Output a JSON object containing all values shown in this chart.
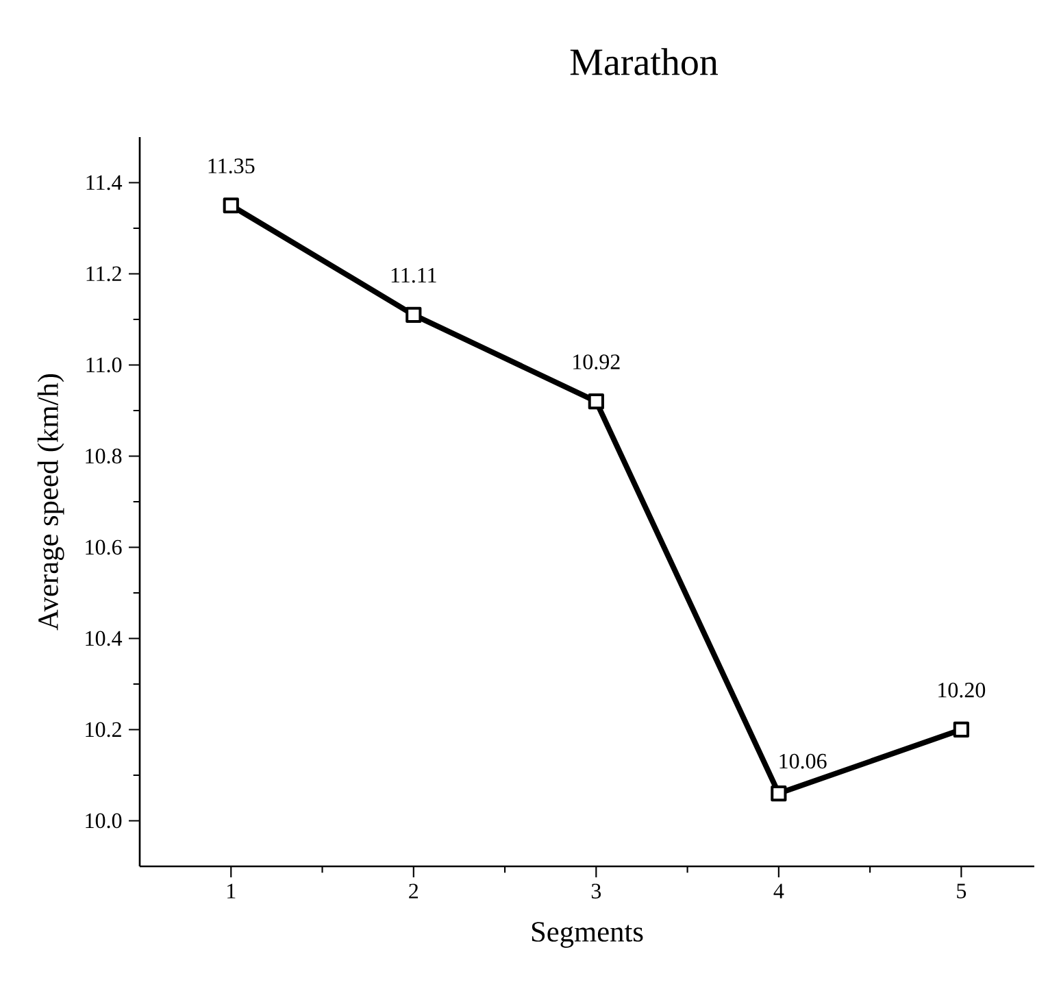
{
  "chart_data": {
    "type": "line",
    "title": "Marathon",
    "xlabel": "Segments",
    "ylabel": "Average speed (km/h)",
    "x": [
      1,
      2,
      3,
      4,
      5
    ],
    "series": [
      {
        "color": "#000000",
        "values": [
          11.35,
          11.11,
          10.92,
          10.06,
          10.2
        ],
        "value_labels": [
          "11.35",
          "11.11",
          "10.92",
          "10.06",
          "10.20"
        ]
      }
    ],
    "xlim": [
      0.5,
      5.4
    ],
    "xticks": [
      1,
      2,
      3,
      4,
      5
    ],
    "ylim": [
      9.9,
      11.5
    ],
    "yticks": [
      {
        "value": 10.0,
        "label": "10.0"
      },
      {
        "value": 10.2,
        "label": "10.2"
      },
      {
        "value": 10.4,
        "label": "10.4"
      },
      {
        "value": 10.6,
        "label": "10.6"
      },
      {
        "value": 10.8,
        "label": "10.8"
      },
      {
        "value": 11.0,
        "label": "11.0"
      },
      {
        "value": 11.2,
        "label": "11.2"
      },
      {
        "value": 11.4,
        "label": "11.4"
      }
    ],
    "grid": false,
    "marker": "square",
    "line_style": "solid"
  }
}
